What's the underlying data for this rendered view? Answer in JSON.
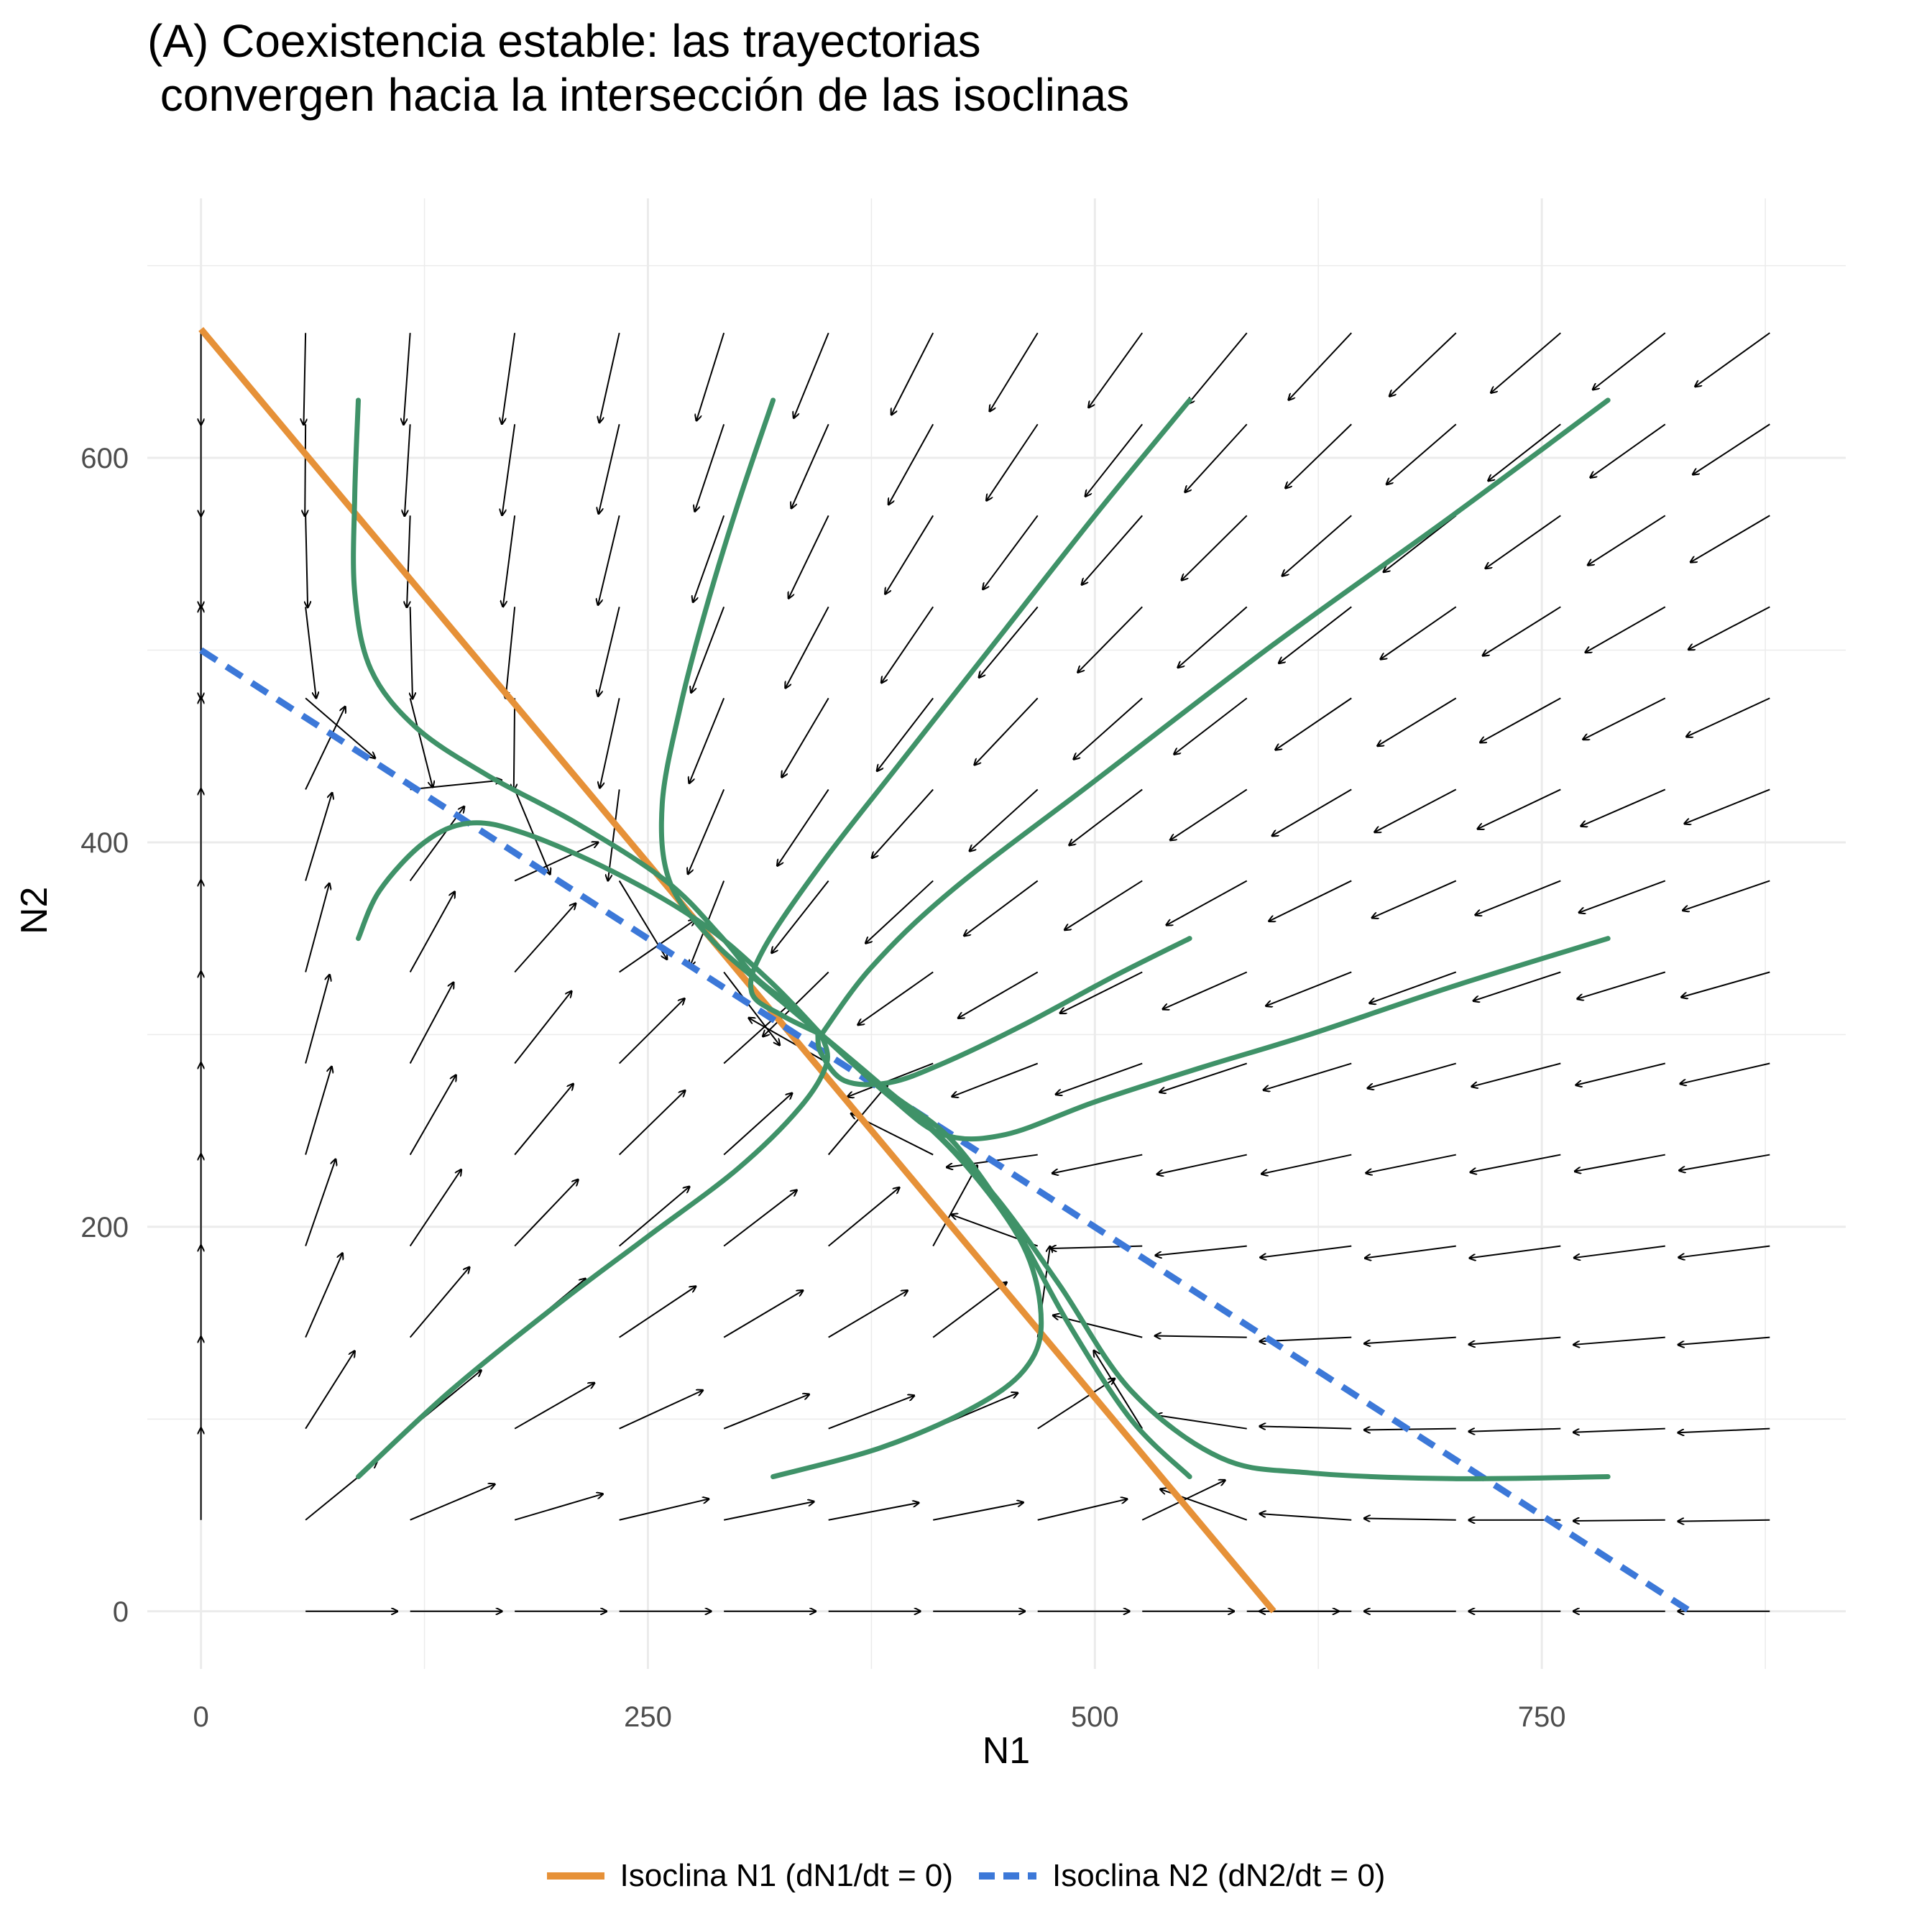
{
  "chart_data": {
    "type": "line",
    "title_lines": [
      "(A) Coexistencia estable: las trayectorias",
      " convergen hacia la intersección de las isoclinas"
    ],
    "xlabel": "N1",
    "ylabel": "N2",
    "xlim": [
      -30,
      920
    ],
    "ylim": [
      -30,
      735
    ],
    "x_ticks": [
      0,
      250,
      500,
      750
    ],
    "x_tick_labels": [
      "0",
      "250",
      "500",
      "750"
    ],
    "y_ticks": [
      0,
      200,
      400,
      600
    ],
    "y_tick_labels": [
      "0",
      "200",
      "400",
      "600"
    ],
    "grid": true,
    "legend_position": "bottom",
    "colors": {
      "isocline_n1": "#E69138",
      "isocline_n2": "#3C78D8",
      "trajectory": "#3F9268",
      "arrow": "#000000",
      "grid": "#EBEBEB"
    },
    "isoclines": [
      {
        "name": "Isoclina N1 (dN1/dt = 0)",
        "style": "solid",
        "points": [
          [
            0,
            667
          ],
          [
            600,
            0
          ]
        ]
      },
      {
        "name": "Isoclina N2 (dN2/dt = 0)",
        "style": "dashed",
        "points": [
          [
            0,
            500
          ],
          [
            833,
            0
          ]
        ]
      }
    ],
    "trajectories": [
      {
        "points": [
          [
            88,
            630
          ],
          [
            86,
            580
          ],
          [
            86,
            530
          ],
          [
            95,
            490
          ],
          [
            120,
            460
          ],
          [
            160,
            435
          ],
          [
            210,
            410
          ],
          [
            260,
            380
          ],
          [
            290,
            352
          ],
          [
            310,
            330
          ],
          [
            330,
            315
          ],
          [
            347,
            300
          ]
        ]
      },
      {
        "points": [
          [
            320,
            630
          ],
          [
            300,
            575
          ],
          [
            282,
            520
          ],
          [
            268,
            470
          ],
          [
            258,
            420
          ],
          [
            262,
            380
          ],
          [
            285,
            350
          ],
          [
            315,
            325
          ],
          [
            347,
            300
          ]
        ]
      },
      {
        "points": [
          [
            553,
            630
          ],
          [
            500,
            570
          ],
          [
            445,
            505
          ],
          [
            390,
            440
          ],
          [
            348,
            390
          ],
          [
            315,
            345
          ],
          [
            308,
            322
          ],
          [
            325,
            310
          ],
          [
            347,
            300
          ]
        ]
      },
      {
        "points": [
          [
            787,
            630
          ],
          [
            700,
            570
          ],
          [
            600,
            503
          ],
          [
            500,
            432
          ],
          [
            420,
            375
          ],
          [
            375,
            335
          ],
          [
            347,
            300
          ]
        ]
      },
      {
        "points": [
          [
            88,
            350
          ],
          [
            100,
            375
          ],
          [
            125,
            400
          ],
          [
            150,
            410
          ],
          [
            180,
            405
          ],
          [
            230,
            385
          ],
          [
            280,
            358
          ],
          [
            318,
            328
          ],
          [
            347,
            300
          ]
        ]
      },
      {
        "points": [
          [
            553,
            350
          ],
          [
            510,
            330
          ],
          [
            460,
            305
          ],
          [
            415,
            285
          ],
          [
            385,
            275
          ],
          [
            360,
            276
          ],
          [
            347,
            290
          ],
          [
            345,
            300
          ]
        ]
      },
      {
        "points": [
          [
            787,
            350
          ],
          [
            700,
            325
          ],
          [
            620,
            300
          ],
          [
            560,
            283
          ],
          [
            500,
            265
          ],
          [
            450,
            248
          ],
          [
            415,
            248
          ],
          [
            385,
            268
          ],
          [
            347,
            300
          ]
        ]
      },
      {
        "points": [
          [
            88,
            70
          ],
          [
            140,
            115
          ],
          [
            200,
            160
          ],
          [
            250,
            195
          ],
          [
            300,
            230
          ],
          [
            335,
            262
          ],
          [
            350,
            285
          ],
          [
            347,
            300
          ]
        ]
      },
      {
        "points": [
          [
            320,
            70
          ],
          [
            380,
            85
          ],
          [
            430,
            105
          ],
          [
            460,
            125
          ],
          [
            470,
            150
          ],
          [
            460,
            190
          ],
          [
            425,
            235
          ],
          [
            385,
            270
          ],
          [
            347,
            300
          ]
        ]
      },
      {
        "points": [
          [
            553,
            70
          ],
          [
            520,
            100
          ],
          [
            485,
            150
          ],
          [
            455,
            200
          ],
          [
            420,
            245
          ],
          [
            385,
            270
          ],
          [
            347,
            300
          ]
        ]
      },
      {
        "points": [
          [
            787,
            70
          ],
          [
            700,
            69
          ],
          [
            620,
            72
          ],
          [
            570,
            80
          ],
          [
            520,
            115
          ],
          [
            480,
            170
          ],
          [
            445,
            215
          ],
          [
            410,
            250
          ],
          [
            375,
            278
          ],
          [
            347,
            300
          ]
        ]
      }
    ]
  }
}
